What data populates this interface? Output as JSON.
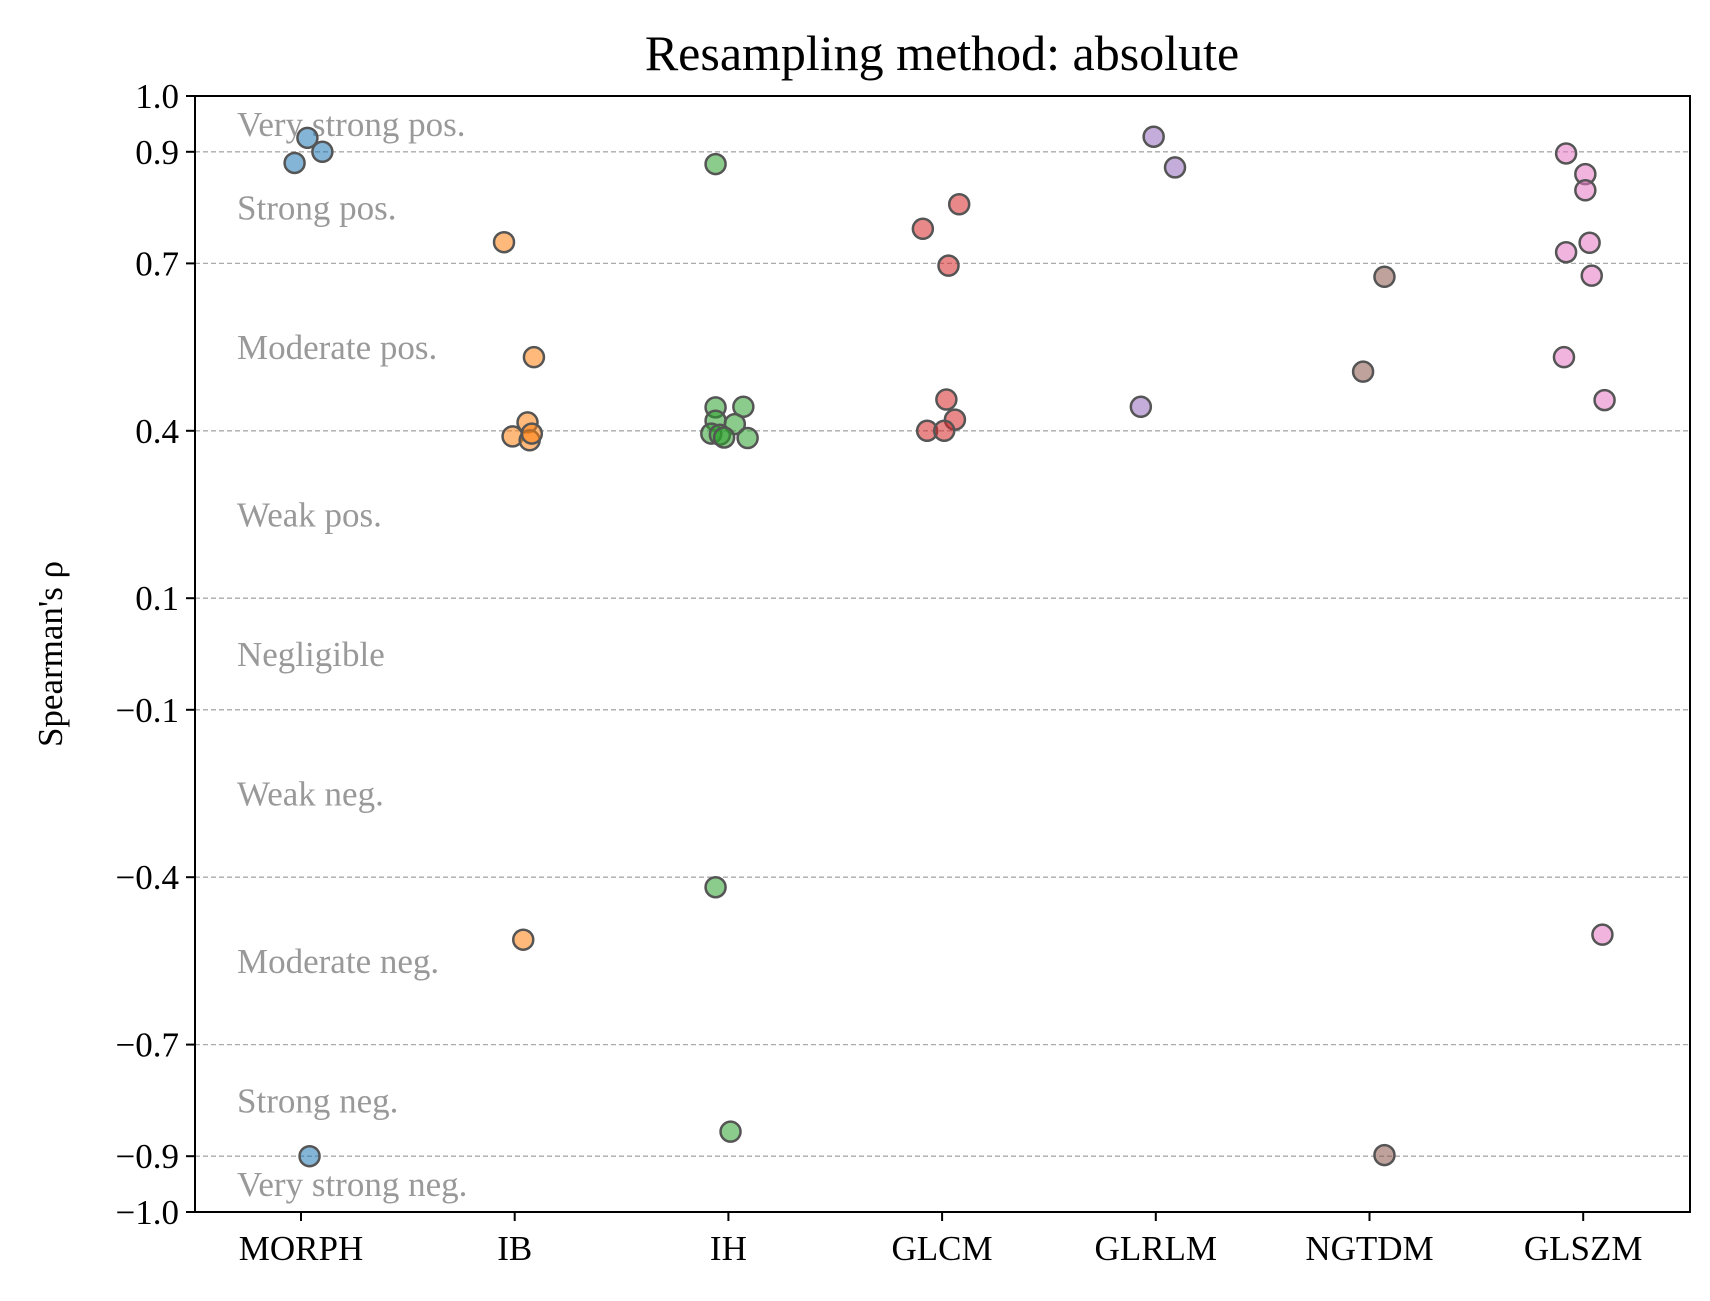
{
  "chart_data": {
    "type": "scatter",
    "title": "Resampling method: absolute",
    "xlabel": "",
    "ylabel": "Spearman's ρ",
    "ylim": [
      -1.0,
      1.0
    ],
    "yticks": [
      "1.0",
      "0.9",
      "0.7",
      "0.4",
      "0.1",
      "−0.1",
      "−0.4",
      "−0.7",
      "−0.9",
      "−1.0"
    ],
    "ytick_values": [
      1.0,
      0.9,
      0.7,
      0.4,
      0.1,
      -0.1,
      -0.4,
      -0.7,
      -0.9,
      -1.0
    ],
    "gridlines_y": [
      1.0,
      0.9,
      0.7,
      0.4,
      0.1,
      -0.1,
      -0.4,
      -0.7,
      -0.9
    ],
    "grid": "dashed horizontal",
    "categories": [
      "MORPH",
      "IB",
      "IH",
      "GLCM",
      "GLRLM",
      "NGTDM",
      "GLSZM"
    ],
    "band_labels": [
      {
        "text": "Very strong pos.",
        "y": 0.95
      },
      {
        "text": "Strong pos.",
        "y": 0.8
      },
      {
        "text": "Moderate pos.",
        "y": 0.55
      },
      {
        "text": "Weak pos.",
        "y": 0.25
      },
      {
        "text": "Negligible",
        "y": 0.0
      },
      {
        "text": "Weak neg.",
        "y": -0.25
      },
      {
        "text": "Moderate neg.",
        "y": -0.55
      },
      {
        "text": "Strong neg.",
        "y": -0.8
      },
      {
        "text": "Very strong neg.",
        "y": -0.95
      }
    ],
    "series": [
      {
        "category": "MORPH",
        "color": "#1f77b4",
        "points": [
          [
            0.03,
            0.925
          ],
          [
            0.1,
            0.9
          ],
          [
            -0.03,
            0.88
          ],
          [
            0.04,
            -0.9
          ]
        ]
      },
      {
        "category": "IB",
        "color": "#ff7f0e",
        "points": [
          [
            -0.05,
            0.738
          ],
          [
            0.09,
            0.532
          ],
          [
            0.06,
            0.415
          ],
          [
            -0.01,
            0.39
          ],
          [
            0.07,
            0.383
          ],
          [
            0.08,
            0.395
          ],
          [
            0.04,
            -0.512
          ]
        ]
      },
      {
        "category": "IH",
        "color": "#2ca02c",
        "points": [
          [
            -0.06,
            0.878
          ],
          [
            -0.06,
            0.442
          ],
          [
            0.07,
            0.443
          ],
          [
            -0.06,
            0.418
          ],
          [
            0.03,
            0.412
          ],
          [
            -0.08,
            0.395
          ],
          [
            -0.04,
            0.393
          ],
          [
            -0.02,
            0.388
          ],
          [
            0.09,
            0.387
          ],
          [
            -0.06,
            -0.418
          ],
          [
            0.01,
            -0.856
          ]
        ]
      },
      {
        "category": "GLCM",
        "color": "#d62728",
        "points": [
          [
            -0.09,
            0.762
          ],
          [
            0.08,
            0.806
          ],
          [
            0.03,
            0.696
          ],
          [
            0.02,
            0.456
          ],
          [
            0.06,
            0.42
          ],
          [
            -0.07,
            0.4
          ],
          [
            0.01,
            0.4
          ]
        ]
      },
      {
        "category": "GLRLM",
        "color": "#9467bd",
        "points": [
          [
            -0.01,
            0.927
          ],
          [
            0.09,
            0.872
          ],
          [
            -0.07,
            0.443
          ]
        ]
      },
      {
        "category": "NGTDM",
        "color": "#8c564b",
        "points": [
          [
            0.07,
            0.676
          ],
          [
            -0.03,
            0.506
          ],
          [
            0.07,
            -0.898
          ]
        ]
      },
      {
        "category": "GLSZM",
        "color": "#e377c2",
        "points": [
          [
            -0.08,
            0.897
          ],
          [
            0.01,
            0.86
          ],
          [
            0.01,
            0.831
          ],
          [
            0.03,
            0.737
          ],
          [
            -0.08,
            0.72
          ],
          [
            0.04,
            0.678
          ],
          [
            -0.09,
            0.532
          ],
          [
            0.1,
            0.455
          ],
          [
            0.09,
            -0.503
          ]
        ]
      }
    ]
  }
}
